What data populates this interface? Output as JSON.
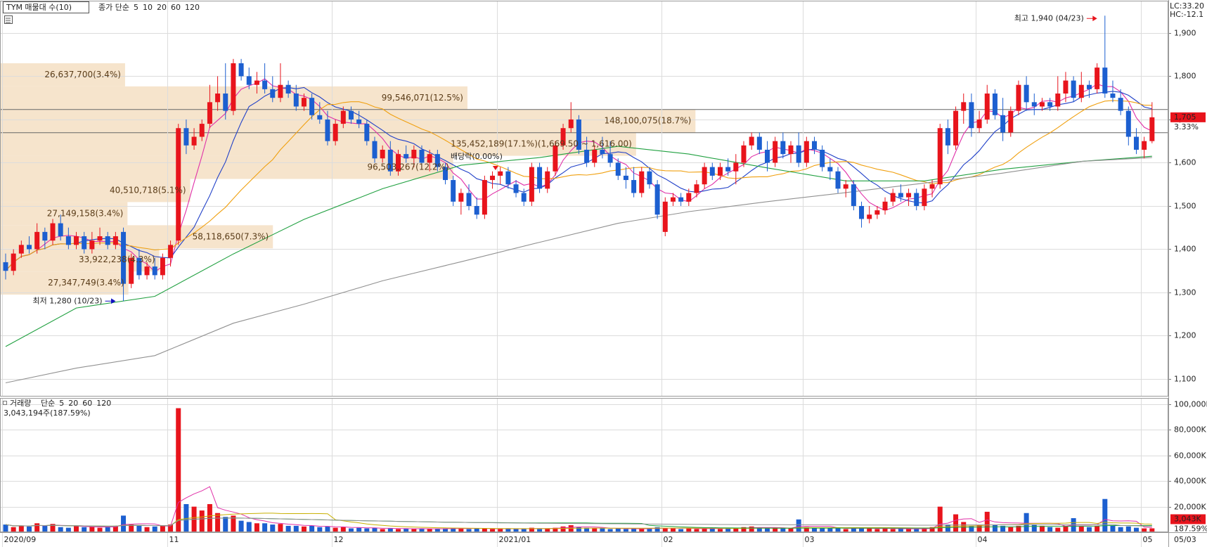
{
  "chart_data": {
    "type": "candlestick",
    "title": "TYM 매물대 수(10)",
    "legend_prefix": "종가 단순",
    "ma_periods": [
      5,
      10,
      20,
      60,
      120
    ],
    "ma_colors": [
      "#e030a8",
      "#2040c8",
      "#f0a010",
      "#20a040",
      "#909090"
    ],
    "up_color": "#e8141c",
    "down_color": "#1c5fd0",
    "grid": true,
    "ylim": [
      1061,
      1973
    ],
    "yticks": [
      {
        "value": 1100,
        "label": "1,100"
      },
      {
        "value": 1200,
        "label": "1,200"
      },
      {
        "value": 1300,
        "label": "1,300"
      },
      {
        "value": 1400,
        "label": "1,400"
      },
      {
        "value": 1500,
        "label": "1,500"
      },
      {
        "value": 1600,
        "label": "1,600"
      },
      {
        "value": 1700,
        "label": "1,700"
      },
      {
        "value": 1800,
        "label": "1,800"
      },
      {
        "value": 1900,
        "label": "1,900"
      }
    ],
    "categories": [
      "2020/09",
      null,
      null,
      null,
      null,
      null,
      null,
      null,
      null,
      null,
      null,
      null,
      null,
      null,
      null,
      null,
      null,
      null,
      null,
      null,
      null,
      "11",
      null,
      null,
      null,
      null,
      null,
      null,
      null,
      null,
      null,
      null,
      null,
      null,
      null,
      null,
      null,
      null,
      null,
      null,
      null,
      null,
      "12",
      null,
      null,
      null,
      null,
      null,
      null,
      null,
      null,
      null,
      null,
      null,
      null,
      null,
      null,
      null,
      null,
      null,
      null,
      null,
      null,
      "2021/01",
      null,
      null,
      null,
      null,
      null,
      null,
      null,
      null,
      null,
      null,
      null,
      null,
      null,
      null,
      null,
      null,
      null,
      null,
      null,
      null,
      "02",
      null,
      null,
      null,
      null,
      null,
      null,
      null,
      null,
      null,
      null,
      null,
      null,
      null,
      null,
      null,
      null,
      null,
      "03",
      null,
      null,
      null,
      null,
      null,
      null,
      null,
      null,
      null,
      null,
      null,
      null,
      null,
      null,
      null,
      null,
      null,
      null,
      null,
      null,
      null,
      "04",
      null,
      null,
      null,
      null,
      null,
      null,
      null,
      null,
      null,
      null,
      null,
      null,
      null,
      null,
      null,
      null,
      null,
      null,
      null,
      null,
      "05"
    ],
    "last_date": "05/03",
    "ohlc": [
      [
        1370,
        1390,
        1330,
        1350
      ],
      [
        1350,
        1400,
        1340,
        1390
      ],
      [
        1390,
        1420,
        1380,
        1410
      ],
      [
        1410,
        1430,
        1390,
        1400
      ],
      [
        1400,
        1460,
        1390,
        1440
      ],
      [
        1440,
        1450,
        1400,
        1420
      ],
      [
        1420,
        1470,
        1410,
        1460
      ],
      [
        1460,
        1480,
        1420,
        1430
      ],
      [
        1430,
        1450,
        1400,
        1410
      ],
      [
        1410,
        1440,
        1400,
        1430
      ],
      [
        1430,
        1440,
        1390,
        1400
      ],
      [
        1400,
        1440,
        1390,
        1420
      ],
      [
        1420,
        1450,
        1410,
        1430
      ],
      [
        1430,
        1440,
        1400,
        1410
      ],
      [
        1410,
        1440,
        1400,
        1430
      ],
      [
        1440,
        1450,
        1280,
        1320
      ],
      [
        1320,
        1390,
        1310,
        1380
      ],
      [
        1380,
        1400,
        1330,
        1340
      ],
      [
        1340,
        1370,
        1330,
        1360
      ],
      [
        1360,
        1380,
        1330,
        1340
      ],
      [
        1340,
        1390,
        1330,
        1380
      ],
      [
        1380,
        1420,
        1360,
        1410
      ],
      [
        1420,
        1690,
        1410,
        1680
      ],
      [
        1680,
        1700,
        1620,
        1640
      ],
      [
        1640,
        1680,
        1630,
        1660
      ],
      [
        1660,
        1700,
        1650,
        1690
      ],
      [
        1690,
        1780,
        1680,
        1740
      ],
      [
        1740,
        1800,
        1720,
        1760
      ],
      [
        1760,
        1830,
        1700,
        1720
      ],
      [
        1720,
        1840,
        1710,
        1830
      ],
      [
        1830,
        1840,
        1790,
        1800
      ],
      [
        1800,
        1820,
        1770,
        1780
      ],
      [
        1780,
        1810,
        1760,
        1790
      ],
      [
        1790,
        1830,
        1760,
        1770
      ],
      [
        1770,
        1800,
        1740,
        1750
      ],
      [
        1750,
        1830,
        1740,
        1780
      ],
      [
        1780,
        1790,
        1750,
        1760
      ],
      [
        1760,
        1780,
        1720,
        1730
      ],
      [
        1730,
        1760,
        1720,
        1750
      ],
      [
        1750,
        1760,
        1700,
        1710
      ],
      [
        1710,
        1740,
        1690,
        1700
      ],
      [
        1700,
        1720,
        1640,
        1650
      ],
      [
        1650,
        1700,
        1640,
        1690
      ],
      [
        1690,
        1730,
        1680,
        1720
      ],
      [
        1720,
        1730,
        1690,
        1700
      ],
      [
        1700,
        1720,
        1680,
        1690
      ],
      [
        1690,
        1700,
        1640,
        1650
      ],
      [
        1650,
        1660,
        1600,
        1610
      ],
      [
        1610,
        1640,
        1600,
        1630
      ],
      [
        1630,
        1650,
        1570,
        1580
      ],
      [
        1580,
        1630,
        1570,
        1620
      ],
      [
        1620,
        1640,
        1600,
        1610
      ],
      [
        1610,
        1640,
        1590,
        1630
      ],
      [
        1630,
        1640,
        1590,
        1600
      ],
      [
        1600,
        1630,
        1580,
        1620
      ],
      [
        1620,
        1630,
        1580,
        1590
      ],
      [
        1590,
        1600,
        1550,
        1560
      ],
      [
        1560,
        1570,
        1500,
        1510
      ],
      [
        1510,
        1540,
        1480,
        1530
      ],
      [
        1530,
        1550,
        1490,
        1500
      ],
      [
        1500,
        1520,
        1470,
        1480
      ],
      [
        1480,
        1570,
        1470,
        1560
      ],
      [
        1560,
        1580,
        1540,
        1570
      ],
      [
        1570,
        1590,
        1550,
        1580
      ],
      [
        1580,
        1590,
        1540,
        1550
      ],
      [
        1550,
        1560,
        1520,
        1530
      ],
      [
        1530,
        1540,
        1500,
        1510
      ],
      [
        1510,
        1600,
        1500,
        1590
      ],
      [
        1590,
        1600,
        1530,
        1540
      ],
      [
        1540,
        1590,
        1530,
        1580
      ],
      [
        1580,
        1650,
        1570,
        1640
      ],
      [
        1640,
        1690,
        1630,
        1680
      ],
      [
        1680,
        1740,
        1670,
        1700
      ],
      [
        1700,
        1710,
        1620,
        1630
      ],
      [
        1630,
        1660,
        1590,
        1600
      ],
      [
        1600,
        1640,
        1590,
        1630
      ],
      [
        1630,
        1660,
        1610,
        1620
      ],
      [
        1620,
        1650,
        1590,
        1600
      ],
      [
        1600,
        1610,
        1560,
        1570
      ],
      [
        1570,
        1590,
        1540,
        1560
      ],
      [
        1560,
        1590,
        1520,
        1530
      ],
      [
        1530,
        1590,
        1520,
        1580
      ],
      [
        1580,
        1590,
        1540,
        1550
      ],
      [
        1550,
        1560,
        1470,
        1480
      ],
      [
        1440,
        1520,
        1430,
        1510
      ],
      [
        1510,
        1530,
        1500,
        1520
      ],
      [
        1520,
        1530,
        1500,
        1510
      ],
      [
        1510,
        1540,
        1500,
        1530
      ],
      [
        1530,
        1560,
        1520,
        1550
      ],
      [
        1550,
        1600,
        1540,
        1590
      ],
      [
        1590,
        1600,
        1560,
        1570
      ],
      [
        1570,
        1600,
        1560,
        1590
      ],
      [
        1590,
        1610,
        1570,
        1580
      ],
      [
        1580,
        1620,
        1550,
        1600
      ],
      [
        1600,
        1650,
        1590,
        1640
      ],
      [
        1640,
        1670,
        1630,
        1660
      ],
      [
        1660,
        1670,
        1620,
        1630
      ],
      [
        1630,
        1650,
        1580,
        1600
      ],
      [
        1600,
        1660,
        1590,
        1650
      ],
      [
        1650,
        1670,
        1610,
        1620
      ],
      [
        1620,
        1650,
        1600,
        1640
      ],
      [
        1640,
        1670,
        1590,
        1600
      ],
      [
        1600,
        1660,
        1590,
        1650
      ],
      [
        1650,
        1660,
        1620,
        1630
      ],
      [
        1630,
        1640,
        1580,
        1590
      ],
      [
        1590,
        1610,
        1560,
        1580
      ],
      [
        1580,
        1590,
        1530,
        1540
      ],
      [
        1540,
        1560,
        1520,
        1550
      ],
      [
        1550,
        1560,
        1490,
        1500
      ],
      [
        1500,
        1510,
        1450,
        1470
      ],
      [
        1470,
        1500,
        1460,
        1480
      ],
      [
        1480,
        1500,
        1470,
        1490
      ],
      [
        1490,
        1520,
        1480,
        1510
      ],
      [
        1510,
        1540,
        1500,
        1530
      ],
      [
        1530,
        1550,
        1510,
        1520
      ],
      [
        1520,
        1540,
        1500,
        1530
      ],
      [
        1530,
        1540,
        1490,
        1500
      ],
      [
        1500,
        1550,
        1490,
        1540
      ],
      [
        1540,
        1560,
        1520,
        1550
      ],
      [
        1550,
        1690,
        1540,
        1680
      ],
      [
        1680,
        1700,
        1620,
        1640
      ],
      [
        1640,
        1730,
        1630,
        1720
      ],
      [
        1720,
        1760,
        1690,
        1740
      ],
      [
        1740,
        1760,
        1660,
        1680
      ],
      [
        1680,
        1720,
        1670,
        1700
      ],
      [
        1700,
        1780,
        1690,
        1760
      ],
      [
        1760,
        1770,
        1700,
        1710
      ],
      [
        1710,
        1750,
        1650,
        1670
      ],
      [
        1670,
        1730,
        1660,
        1720
      ],
      [
        1720,
        1790,
        1710,
        1780
      ],
      [
        1780,
        1800,
        1720,
        1740
      ],
      [
        1740,
        1760,
        1710,
        1730
      ],
      [
        1730,
        1750,
        1720,
        1740
      ],
      [
        1740,
        1750,
        1720,
        1730
      ],
      [
        1730,
        1800,
        1720,
        1760
      ],
      [
        1760,
        1810,
        1740,
        1790
      ],
      [
        1790,
        1800,
        1740,
        1750
      ],
      [
        1750,
        1810,
        1740,
        1780
      ],
      [
        1780,
        1790,
        1750,
        1770
      ],
      [
        1770,
        1830,
        1760,
        1820
      ],
      [
        1820,
        1940,
        1750,
        1760
      ],
      [
        1760,
        1790,
        1740,
        1750
      ],
      [
        1750,
        1770,
        1710,
        1720
      ],
      [
        1720,
        1730,
        1640,
        1660
      ],
      [
        1660,
        1680,
        1620,
        1630
      ],
      [
        1630,
        1660,
        1610,
        1650
      ],
      [
        1650,
        1740,
        1645,
        1705
      ]
    ],
    "ma_60": {
      "x": [
        0,
        9,
        19,
        29,
        38,
        48,
        58,
        68,
        78,
        87,
        97,
        107,
        117,
        127,
        137,
        146
      ],
      "values": [
        1175,
        1264,
        1291,
        1389,
        1469,
        1540,
        1594,
        1612,
        1638,
        1620,
        1588,
        1558,
        1558,
        1585,
        1603,
        1615
      ]
    },
    "ma_120": {
      "x": [
        0,
        9,
        19,
        29,
        38,
        48,
        58,
        68,
        78,
        87,
        97,
        107,
        117,
        127,
        137,
        146
      ],
      "values": [
        1091,
        1125,
        1154,
        1229,
        1273,
        1327,
        1371,
        1416,
        1460,
        1487,
        1510,
        1531,
        1553,
        1576,
        1603,
        1612
      ]
    },
    "volume_bands": [
      {
        "label": "26,637,700(3.4%)",
        "value": 26637700,
        "range": [
          1776.5,
          1830
        ]
      },
      {
        "label": "99,546,071(12.5%)",
        "value": 99546071,
        "range": [
          1723,
          1776.5
        ]
      },
      {
        "label": "148,100,075(18.7%)",
        "value": 148100075,
        "range": [
          1669.5,
          1723
        ]
      },
      {
        "label": "135,452,189(17.1%)(1,669.50 ~ 1,616.00)",
        "value": 135452189,
        "range": [
          1616,
          1669.5
        ]
      },
      {
        "label": "96,503,267(12.2%)",
        "value": 96503267,
        "range": [
          1562.5,
          1616
        ]
      },
      {
        "label": "40,510,718(5.1%)",
        "value": 40510718,
        "range": [
          1509,
          1562.5
        ]
      },
      {
        "label": "27,149,158(3.4%)",
        "value": 27149158,
        "range": [
          1455.5,
          1509
        ]
      },
      {
        "label": "58,118,650(7.3%)",
        "value": 58118650,
        "range": [
          1402,
          1455.5
        ]
      },
      {
        "label": "33,922,238(4.3%)",
        "value": 33922238,
        "range": [
          1348.5,
          1402
        ]
      },
      {
        "label": "27,347,749(3.4%)",
        "value": 27347749,
        "range": [
          1295,
          1348.5
        ]
      }
    ],
    "high_label": "최고 1,940 (04/23)",
    "low_label": "최저 1,280 (10/23)",
    "ex_dividend": "배당락(0.00%)",
    "lc_label": "LC:33.20",
    "hc_label": "HC:-12.1",
    "last_price": 1705,
    "last_price_label": "1,705",
    "change_label": "3.33%",
    "volume": {
      "title": "거래량",
      "legend_prefix": "단순",
      "ma_periods": [
        5,
        20,
        60,
        120
      ],
      "ma_colors": [
        "#e030a8",
        "#c8b000",
        "#20a040",
        "#909090"
      ],
      "ylim": [
        0,
        105000
      ],
      "yticks": [
        {
          "value": 20000,
          "label": "20,000K"
        },
        {
          "value": 40000,
          "label": "40,000K"
        },
        {
          "value": 60000,
          "label": "60,000K"
        },
        {
          "value": 80000,
          "label": "80,000K"
        },
        {
          "value": 100000,
          "label": "100,000K"
        }
      ],
      "values": [
        6000,
        4000,
        5000,
        4500,
        7000,
        5000,
        6500,
        4000,
        3500,
        5000,
        4000,
        4500,
        3500,
        4000,
        5000,
        13000,
        6000,
        5000,
        4000,
        4500,
        5000,
        6000,
        97000,
        22000,
        20000,
        17000,
        22000,
        15000,
        12000,
        13000,
        9000,
        8000,
        7000,
        7000,
        6000,
        6500,
        5000,
        5000,
        4500,
        5000,
        4000,
        4500,
        3500,
        4000,
        3000,
        3500,
        3000,
        3500,
        2500,
        3000,
        2500,
        3000,
        2500,
        3000,
        2500,
        2500,
        3000,
        3500,
        3000,
        2500,
        3000,
        3000,
        2500,
        2500,
        3000,
        2500,
        3000,
        3500,
        2500,
        3000,
        3500,
        4500,
        5500,
        4000,
        3500,
        3000,
        3000,
        2500,
        3000,
        2500,
        3000,
        2500,
        3000,
        4000,
        3500,
        3000,
        2500,
        3000,
        2500,
        3000,
        3500,
        2500,
        3000,
        3500,
        4000,
        4500,
        3500,
        3000,
        3500,
        3000,
        3000,
        10000,
        4000,
        3500,
        3000,
        3000,
        3500,
        2500,
        3000,
        3500,
        3000,
        2500,
        3000,
        2500,
        3000,
        2500,
        2500,
        3000,
        4000,
        20000,
        6000,
        14000,
        8000,
        5000,
        5500,
        16000,
        6000,
        5000,
        4000,
        5000,
        15000,
        6000,
        5000,
        4000,
        3500,
        5000,
        11000,
        4500,
        4000,
        5000,
        26000,
        5000,
        4000,
        4500,
        3500,
        3000,
        3043.194
      ],
      "summary": "3,043,194주(187.59%)",
      "last_label": "3,043K",
      "ratio_label": "187.59%"
    }
  }
}
